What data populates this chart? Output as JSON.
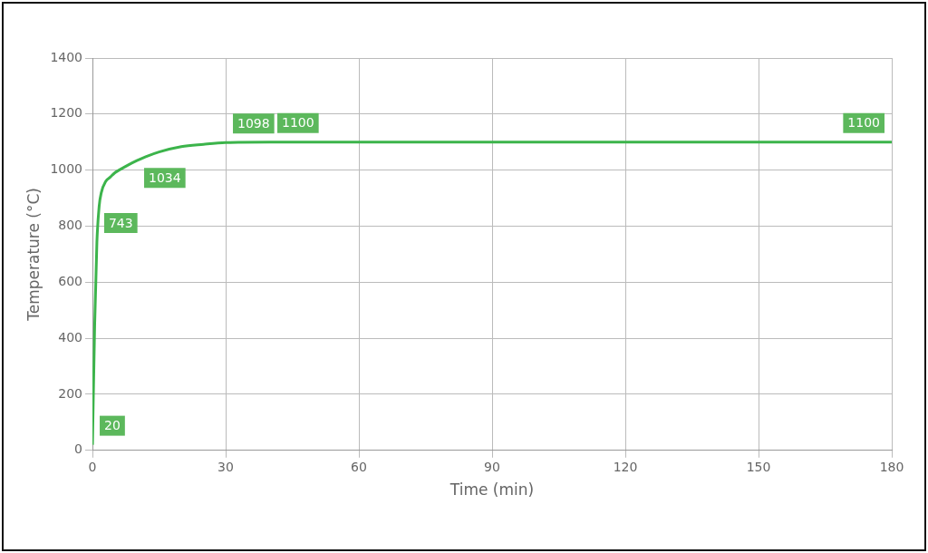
{
  "chart_data": {
    "type": "line",
    "xlabel": "Time (min)",
    "ylabel": "Temperature (°C)",
    "x": [
      0,
      0.5,
      1,
      1.5,
      2,
      3,
      4,
      5,
      6,
      8,
      10,
      12,
      15,
      20,
      25,
      30,
      40,
      60,
      90,
      120,
      150,
      180
    ],
    "series": [
      {
        "color": "#3cb44b",
        "values": [
          20,
          450,
          743,
          870,
          920,
          960,
          975,
          990,
          1000,
          1018,
          1034,
          1048,
          1065,
          1084,
          1092,
          1098,
          1100,
          1100,
          1100,
          1100,
          1100,
          1100
        ],
        "value_labels": [
          "20",
          null,
          "743",
          null,
          null,
          null,
          null,
          null,
          null,
          null,
          "1034",
          null,
          null,
          null,
          null,
          "1098",
          "1100",
          null,
          null,
          null,
          null,
          "1100"
        ]
      }
    ],
    "xlim": [
      0,
      180
    ],
    "xticks": [
      0,
      30,
      60,
      90,
      120,
      150,
      180
    ],
    "ylim": [
      0,
      1400
    ],
    "yticks": [
      0,
      200,
      400,
      600,
      800,
      1000,
      1200,
      1400
    ],
    "grid": true,
    "legend": false,
    "marker": "none",
    "line_style": "solid"
  }
}
